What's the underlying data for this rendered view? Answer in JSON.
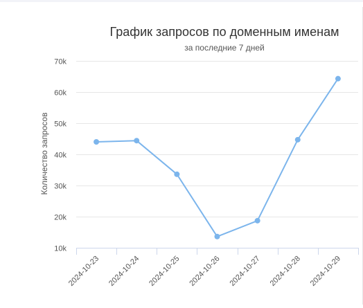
{
  "chart_data": {
    "type": "line",
    "title": "График запросов по доменным именам",
    "subtitle": "за последние 7 дней",
    "xlabel": "",
    "ylabel": "Количество запросов",
    "categories": [
      "2024-10-23",
      "2024-10-24",
      "2024-10-25",
      "2024-10-26",
      "2024-10-27",
      "2024-10-28",
      "2024-10-29"
    ],
    "series": [
      {
        "values": [
          44000,
          44400,
          33600,
          13600,
          18700,
          44700,
          64300
        ]
      }
    ],
    "ylim": [
      10000,
      70000
    ],
    "yticks": [
      10000,
      20000,
      30000,
      40000,
      50000,
      60000,
      70000
    ],
    "ytick_labels": [
      "10k",
      "20k",
      "30k",
      "40k",
      "50k",
      "60k",
      "70k"
    ],
    "grid": true,
    "legend": "none",
    "colors": {
      "series": "#7cb5ec"
    }
  }
}
